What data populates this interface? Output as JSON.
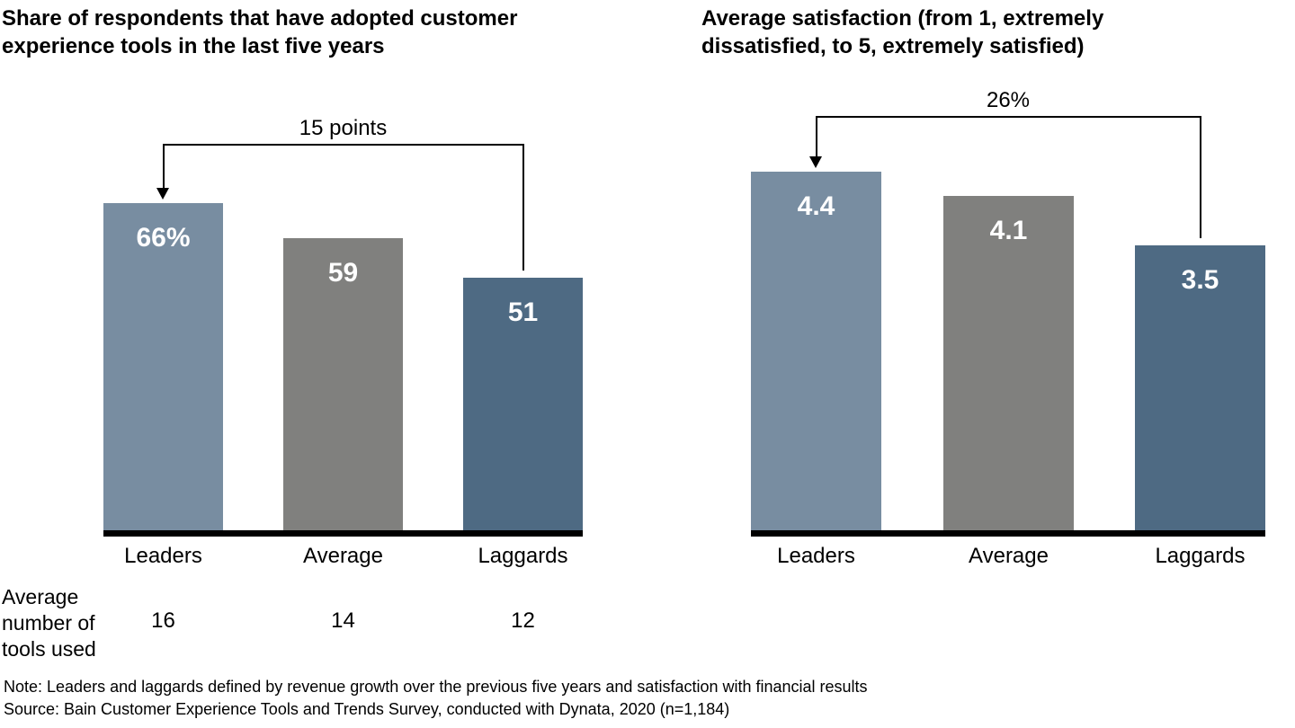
{
  "page": {
    "note": "Note: Leaders and laggards defined by revenue growth over the previous five years and satisfaction with financial results",
    "source": "Source: Bain Customer Experience Tools and Trends Survey, conducted with Dynata, 2020 (n=1,184)"
  },
  "colors": {
    "leaders_bar": "#788DA1",
    "average_bar": "#80807E",
    "laggards_bar": "#4E6A83",
    "bar_value_text": "#FFFFFF",
    "text": "#000000",
    "axis_line": "#000000"
  },
  "chart_data": [
    {
      "type": "bar",
      "title": "Share of respondents that have adopted customer experience tools in the last five years",
      "categories": [
        "Leaders",
        "Average",
        "Laggards"
      ],
      "values": [
        66,
        59,
        51
      ],
      "value_labels": [
        "66%",
        "59",
        "51"
      ],
      "ylim": [
        0,
        100
      ],
      "bar_colors": [
        "#788DA1",
        "#80807E",
        "#4E6A83"
      ],
      "grid": false,
      "legend": false,
      "annotation": {
        "label": "15 points",
        "from": "Laggards",
        "to": "Leaders"
      },
      "row_annotation": {
        "label": "Average number of tools used",
        "values": [
          "16",
          "14",
          "12"
        ]
      }
    },
    {
      "type": "bar",
      "title": "Average satisfaction (from 1, extremely dissatisfied, to 5, extremely satisfied)",
      "categories": [
        "Leaders",
        "Average",
        "Laggards"
      ],
      "values": [
        4.4,
        4.1,
        3.5
      ],
      "value_labels": [
        "4.4",
        "4.1",
        "3.5"
      ],
      "ylim": [
        0,
        5
      ],
      "bar_colors": [
        "#788DA1",
        "#80807E",
        "#4E6A83"
      ],
      "grid": false,
      "legend": false,
      "annotation": {
        "label": "26%",
        "from": "Laggards",
        "to": "Leaders"
      }
    }
  ]
}
